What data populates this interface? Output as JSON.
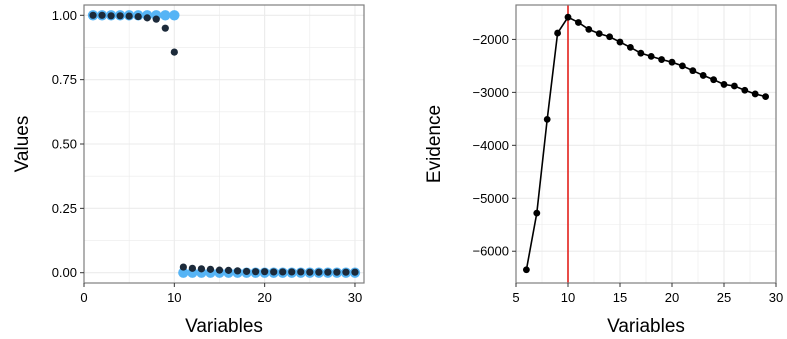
{
  "chart_data": [
    {
      "type": "scatter",
      "xlabel": "Variables",
      "ylabel": "Values",
      "xlim": [
        0,
        31
      ],
      "ylim": [
        -0.04,
        1.04
      ],
      "xticks": [
        "0",
        "10",
        "20",
        "30"
      ],
      "xtick_values": [
        0,
        10,
        20,
        30
      ],
      "yticks": [
        "0.00",
        "0.25",
        "0.50",
        "0.75",
        "1.00"
      ],
      "ytick_values": [
        0,
        0.25,
        0.5,
        0.75,
        1.0
      ],
      "grid": true,
      "colors": {
        "light_series": "#56B4F5",
        "dark_series": "#1C2A3A",
        "panel_border": "#7f7f7f",
        "grid": "#ebebeb"
      },
      "series": [
        {
          "x": [
            1,
            2,
            3,
            4,
            5,
            6,
            7,
            8,
            9,
            10,
            11,
            12,
            13,
            14,
            15,
            16,
            17,
            18,
            19,
            20,
            21,
            22,
            23,
            24,
            25,
            26,
            27,
            28,
            29,
            30
          ],
          "values": [
            1,
            1,
            1,
            1,
            1,
            1,
            1,
            1,
            1,
            1,
            0,
            0,
            0,
            0,
            0,
            0,
            0,
            0,
            0,
            0,
            0,
            0,
            0,
            0,
            0,
            0,
            0,
            0,
            0,
            0
          ],
          "color": "#56B4F5"
        },
        {
          "x": [
            1,
            2,
            3,
            4,
            5,
            6,
            7,
            8,
            9,
            10,
            11,
            12,
            13,
            14,
            15,
            16,
            17,
            18,
            19,
            20,
            21,
            22,
            23,
            24,
            25,
            26,
            27,
            28,
            29,
            30
          ],
          "values": [
            1.0,
            1.0,
            0.998,
            0.998,
            0.997,
            0.995,
            0.99,
            0.985,
            0.95,
            0.857,
            0.022,
            0.017,
            0.015,
            0.013,
            0.01,
            0.009,
            0.007,
            0.005,
            0.004,
            0.004,
            0.003,
            0.003,
            0.003,
            0.003,
            0.002,
            0.002,
            0.002,
            0.002,
            0.002,
            0.002
          ],
          "color": "#1C2A3A"
        }
      ]
    },
    {
      "type": "line",
      "xlabel": "Variables",
      "ylabel": "Evidence",
      "xlim": [
        5,
        30
      ],
      "ylim": [
        -6600,
        -1350
      ],
      "xticks": [
        "5",
        "10",
        "15",
        "20",
        "25",
        "30"
      ],
      "xtick_values": [
        5,
        10,
        15,
        20,
        25,
        30
      ],
      "yticks": [
        "−6000",
        "−5000",
        "−4000",
        "−3000",
        "−2000"
      ],
      "ytick_values": [
        -6000,
        -5000,
        -4000,
        -3000,
        -2000
      ],
      "grid": true,
      "vline_x": 10,
      "colors": {
        "line": "#000000",
        "vline": "#E3211C",
        "panel_border": "#7f7f7f",
        "grid": "#ebebeb"
      },
      "series": [
        {
          "x": [
            6,
            7,
            8,
            9,
            10,
            11,
            12,
            13,
            14,
            15,
            16,
            17,
            18,
            19,
            20,
            21,
            22,
            23,
            24,
            25,
            26,
            27,
            28,
            29
          ],
          "values": [
            -6350,
            -5280,
            -3510,
            -1880,
            -1580,
            -1680,
            -1810,
            -1890,
            -1950,
            -2050,
            -2150,
            -2260,
            -2320,
            -2380,
            -2430,
            -2500,
            -2590,
            -2680,
            -2760,
            -2850,
            -2880,
            -2960,
            -3030,
            -3080
          ]
        }
      ]
    }
  ]
}
